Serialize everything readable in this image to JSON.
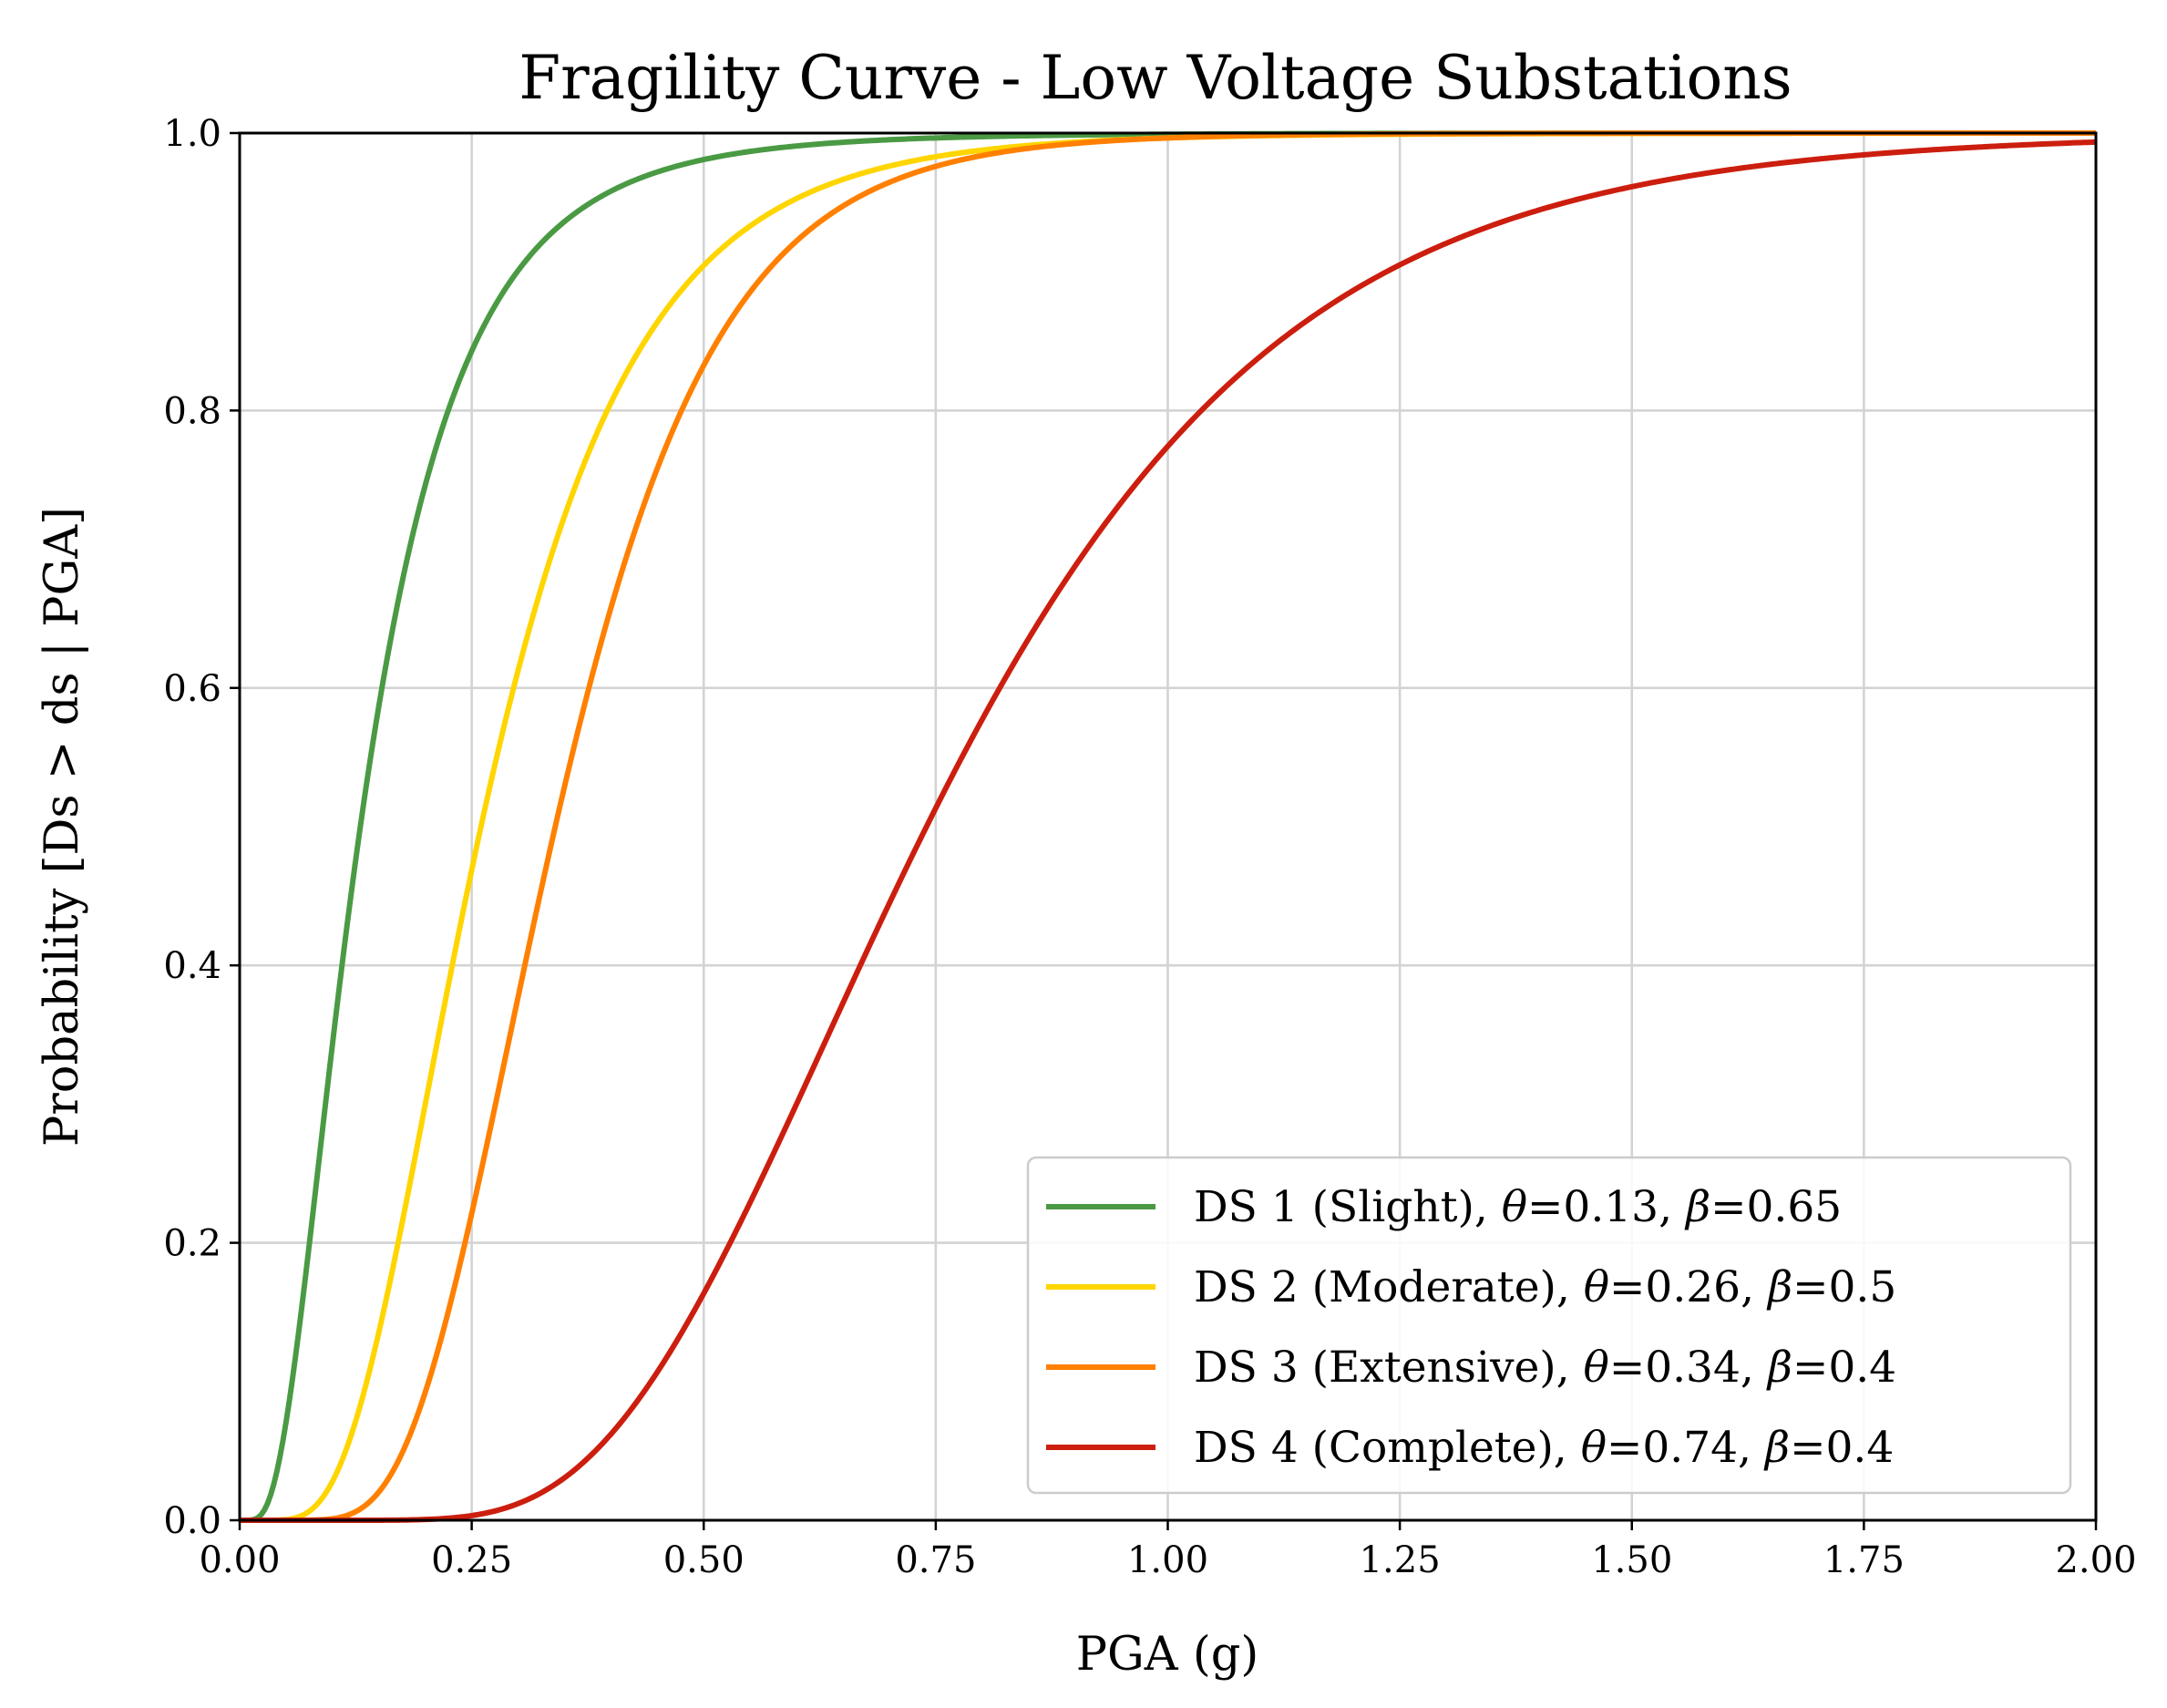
{
  "chart_data": {
    "type": "line",
    "title": "Fragility Curve - Low Voltage Substations",
    "xlabel": "PGA (g)",
    "ylabel": "Probability [Ds > ds | PGA]",
    "xlim": [
      0.0,
      2.0
    ],
    "ylim": [
      0.0,
      1.0
    ],
    "xticks": [
      0.0,
      0.25,
      0.5,
      0.75,
      1.0,
      1.25,
      1.5,
      1.75,
      2.0
    ],
    "xtick_labels": [
      "0.00",
      "0.25",
      "0.50",
      "0.75",
      "1.00",
      "1.25",
      "1.50",
      "1.75",
      "2.00"
    ],
    "yticks": [
      0.0,
      0.2,
      0.4,
      0.6,
      0.8,
      1.0
    ],
    "ytick_labels": [
      "0.0",
      "0.2",
      "0.4",
      "0.6",
      "0.8",
      "1.0"
    ],
    "grid": true,
    "legend_position": "lower-right",
    "curve_model": "lognormal CDF: P = Phi(ln(x/theta)/beta)",
    "series": [
      {
        "name": "DS 1 (Slight)",
        "label_prefix": "DS 1 (Slight), ",
        "theta_text": "0.13",
        "beta_text": "0.65",
        "theta": 0.13,
        "beta": 0.65,
        "color": "#4a9a44"
      },
      {
        "name": "DS 2 (Moderate)",
        "label_prefix": "DS 2 (Moderate), ",
        "theta_text": "0.26",
        "beta_text": "0.5",
        "theta": 0.26,
        "beta": 0.5,
        "color": "#ffd500"
      },
      {
        "name": "DS 3 (Extensive)",
        "label_prefix": "DS 3 (Extensive), ",
        "theta_text": "0.34",
        "beta_text": "0.4",
        "theta": 0.34,
        "beta": 0.4,
        "color": "#ff8000"
      },
      {
        "name": "DS 4 (Complete)",
        "label_prefix": "DS 4 (Complete), ",
        "theta_text": "0.74",
        "beta_text": "0.4",
        "theta": 0.74,
        "beta": 0.4,
        "color": "#cc1e0e"
      }
    ]
  }
}
